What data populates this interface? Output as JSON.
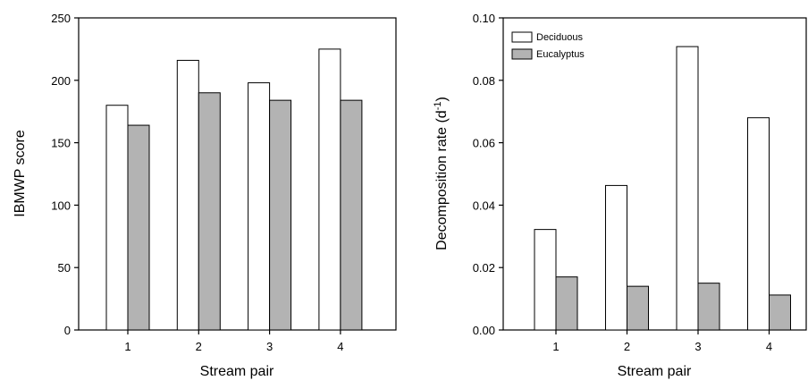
{
  "chart_data": [
    {
      "type": "bar",
      "categories": [
        "1",
        "2",
        "3",
        "4"
      ],
      "series": [
        {
          "values": [
            180,
            216,
            198,
            225
          ]
        },
        {
          "values": [
            164,
            190,
            184,
            184
          ]
        }
      ],
      "xlabel": "Stream pair",
      "ylabel": "IBMWP score",
      "ylim": [
        0,
        250
      ],
      "yticks": [
        "0",
        "50",
        "100",
        "150",
        "200",
        "250"
      ],
      "ytick_values": [
        0,
        50,
        100,
        150,
        200,
        250
      ],
      "colors": [
        "#ffffff",
        "#b3b3b3"
      ],
      "grid": false,
      "legend": false
    },
    {
      "type": "bar",
      "categories": [
        "1",
        "2",
        "3",
        "4"
      ],
      "series": [
        {
          "name": "Deciduous",
          "values": [
            0.0322,
            0.0463,
            0.0908,
            0.068
          ]
        },
        {
          "name": "Eucalyptus",
          "values": [
            0.017,
            0.014,
            0.015,
            0.0112
          ]
        }
      ],
      "xlabel": "Stream pair",
      "ylabel_main": "Decomposition rate (d",
      "ylabel_sup": "-1",
      "ylabel_end": ")",
      "ylim": [
        0,
        0.1
      ],
      "yticks": [
        "0.00",
        "0.02",
        "0.04",
        "0.06",
        "0.08",
        "0.10"
      ],
      "ytick_values": [
        0,
        0.02,
        0.04,
        0.06,
        0.08,
        0.1
      ],
      "colors": [
        "#ffffff",
        "#b3b3b3"
      ],
      "grid": false,
      "legend": "top-left"
    }
  ]
}
